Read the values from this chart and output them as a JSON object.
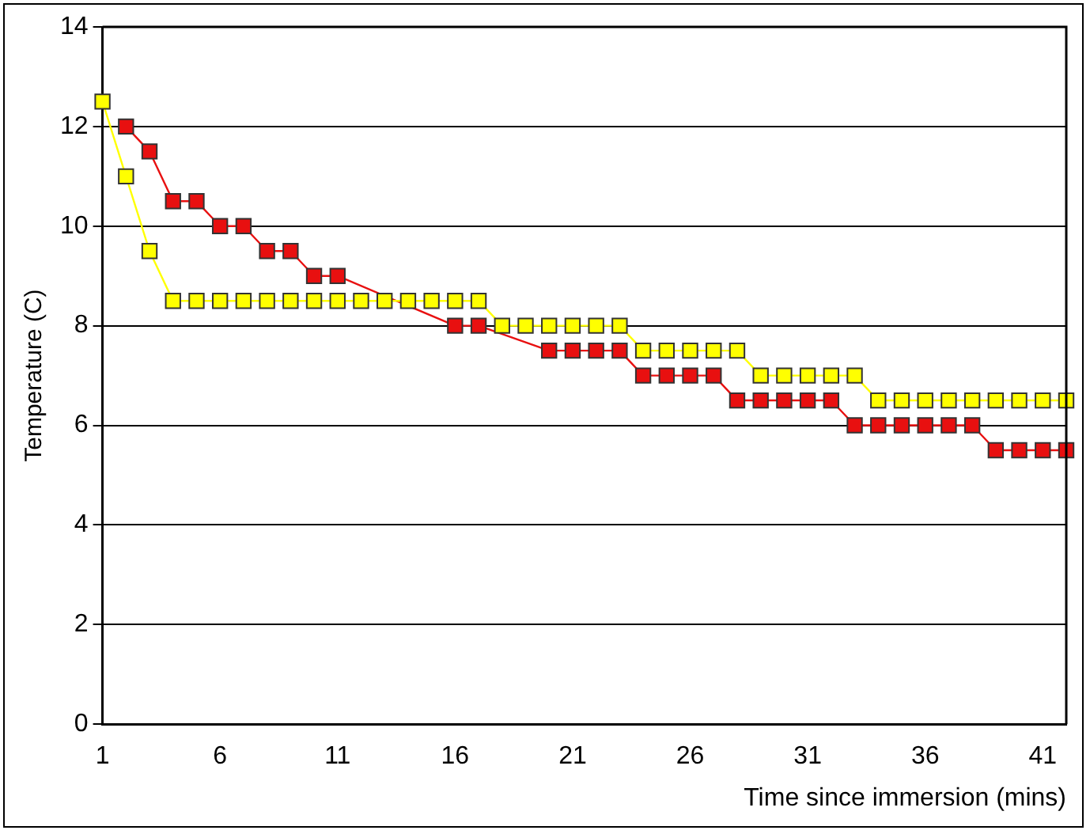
{
  "chart_data": {
    "type": "line",
    "xlabel": "Time since immersion (mins)",
    "ylabel": "Temperature (C)",
    "x": [
      1,
      2,
      3,
      4,
      5,
      6,
      7,
      8,
      9,
      10,
      11,
      12,
      13,
      14,
      15,
      16,
      17,
      18,
      19,
      20,
      21,
      22,
      23,
      24,
      25,
      26,
      27,
      28,
      29,
      30,
      31,
      32,
      33,
      34,
      35,
      36,
      37,
      38,
      39,
      40,
      41,
      42
    ],
    "series": [
      {
        "color": "#e81010",
        "values": [
          null,
          12,
          11.5,
          10.5,
          10.5,
          10,
          10,
          9.5,
          9.5,
          9,
          9,
          null,
          null,
          null,
          null,
          8,
          8,
          null,
          null,
          7.5,
          7.5,
          7.5,
          7.5,
          7,
          7,
          7,
          7,
          6.5,
          6.5,
          6.5,
          6.5,
          6.5,
          6,
          6,
          6,
          6,
          6,
          6,
          5.5,
          5.5,
          5.5,
          5.5
        ]
      },
      {
        "color": "#ffff00",
        "values": [
          12.5,
          11,
          9.5,
          8.5,
          8.5,
          8.5,
          8.5,
          8.5,
          8.5,
          8.5,
          8.5,
          8.5,
          8.5,
          8.5,
          8.5,
          8.5,
          8.5,
          8,
          8,
          8,
          8,
          8,
          8,
          7.5,
          7.5,
          7.5,
          7.5,
          7.5,
          7,
          7,
          7,
          7,
          7,
          6.5,
          6.5,
          6.5,
          6.5,
          6.5,
          6.5,
          6.5,
          6.5,
          6.5
        ]
      }
    ],
    "xlim": [
      1,
      42
    ],
    "xticks": [
      1,
      6,
      11,
      16,
      21,
      26,
      31,
      36,
      41
    ],
    "ylim": [
      0,
      14
    ],
    "yticks": [
      0,
      2,
      4,
      6,
      8,
      10,
      12,
      14
    ],
    "grid": "y",
    "legend": false,
    "marker": "square",
    "line_style": "solid"
  }
}
